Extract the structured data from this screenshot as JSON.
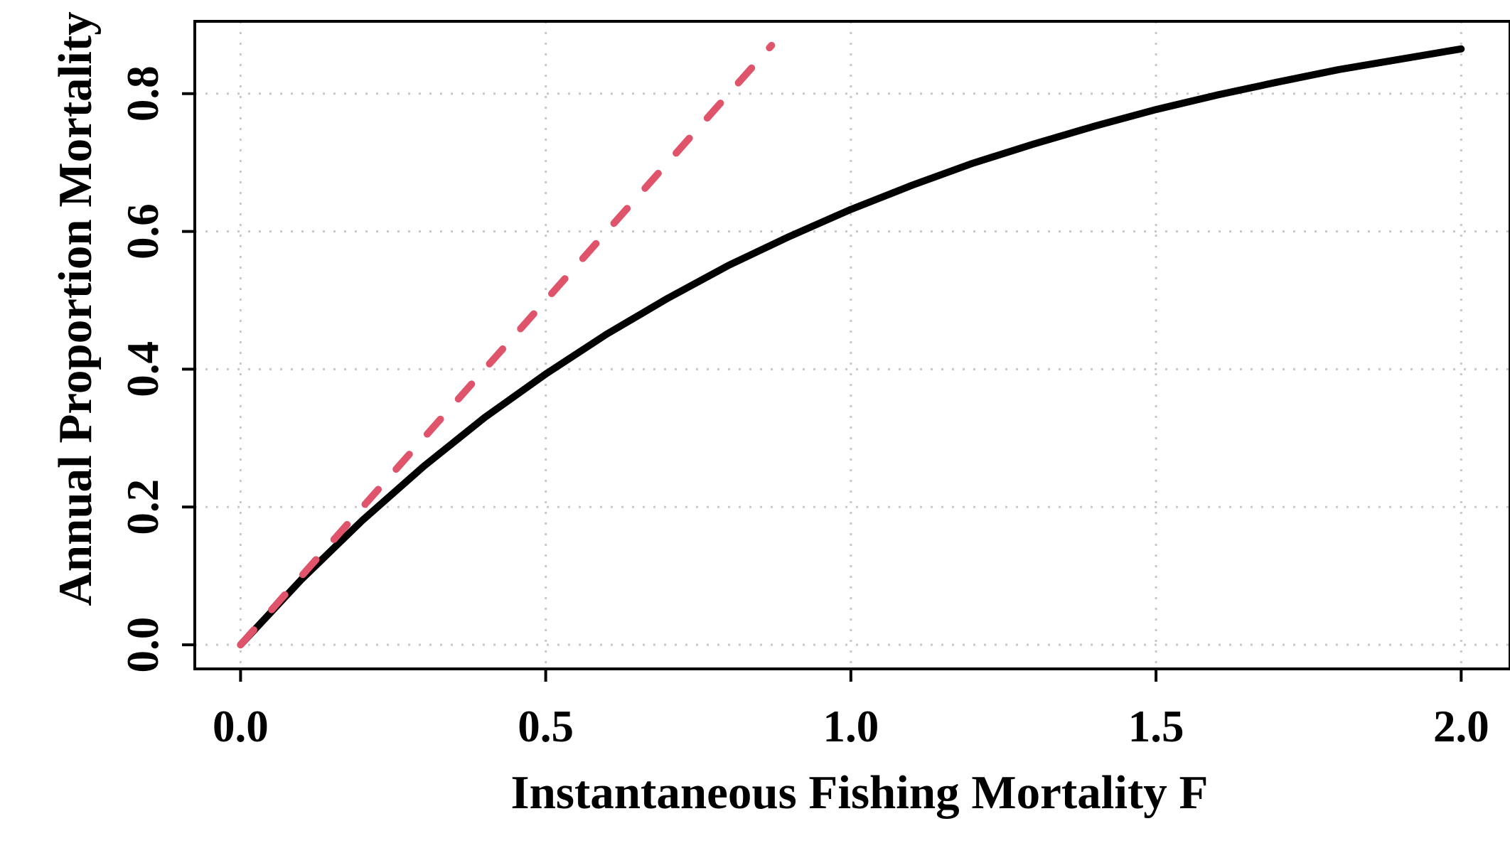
{
  "chart_data": {
    "type": "line",
    "xlabel": "Instantaneous Fishing Mortality F",
    "ylabel": "Annual Proportion Mortality H",
    "xlim": [
      -0.075,
      2.08
    ],
    "ylim": [
      -0.035,
      0.905
    ],
    "x_ticks": [
      "0.0",
      "0.5",
      "1.0",
      "1.5",
      "2.0"
    ],
    "y_ticks": [
      "0.0",
      "0.2",
      "0.4",
      "0.6",
      "0.8"
    ],
    "grid": true,
    "grid_style": "dotted",
    "series": [
      {
        "color": "#000000",
        "style": "solid",
        "x": [
          0.0,
          0.1,
          0.2,
          0.3,
          0.4,
          0.5,
          0.6,
          0.7,
          0.8,
          0.9,
          1.0,
          1.1,
          1.2,
          1.3,
          1.4,
          1.5,
          1.6,
          1.7,
          1.8,
          1.9,
          2.0
        ],
        "y": [
          0.0,
          0.095,
          0.181,
          0.259,
          0.33,
          0.393,
          0.451,
          0.503,
          0.551,
          0.593,
          0.632,
          0.667,
          0.699,
          0.727,
          0.753,
          0.777,
          0.798,
          0.817,
          0.835,
          0.85,
          0.865
        ]
      },
      {
        "color": "#DF536B",
        "style": "dashed",
        "x": [
          0.0,
          0.87
        ],
        "y": [
          0.0,
          0.87
        ]
      }
    ]
  }
}
